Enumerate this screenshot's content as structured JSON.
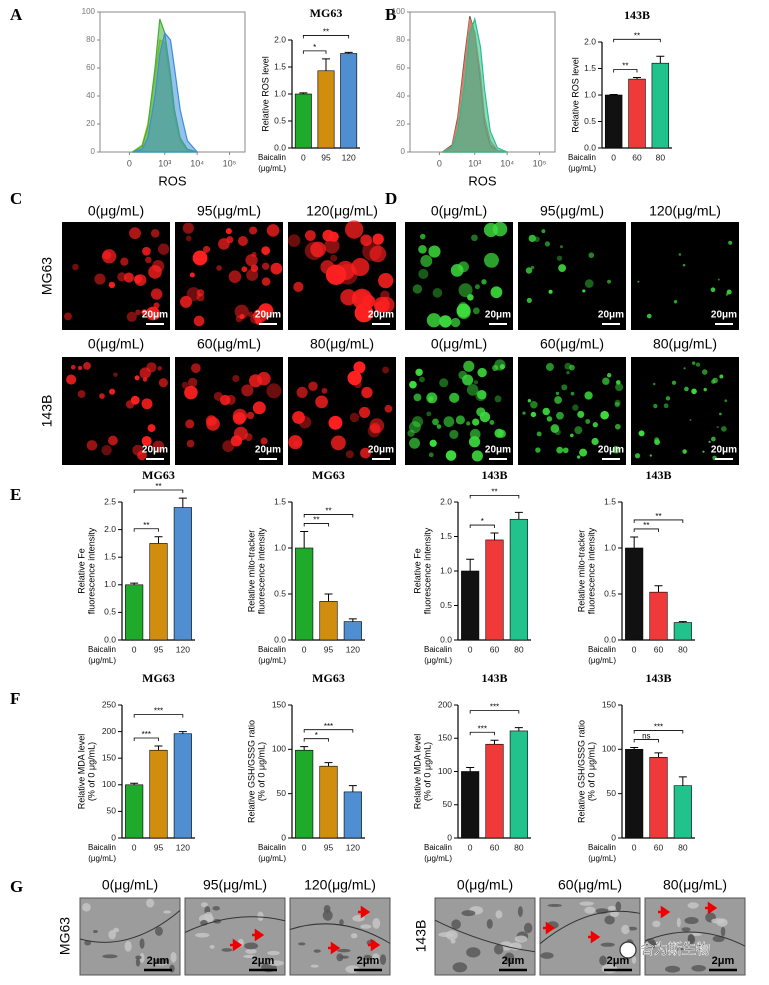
{
  "panel_labels": [
    "A",
    "B",
    "C",
    "D",
    "E",
    "F",
    "G"
  ],
  "chart_data": [
    {
      "type": "area",
      "xscale": "biexponential",
      "xlabel": "ROS",
      "x": [
        100,
        200,
        300,
        500,
        700,
        1000,
        1500,
        2000,
        3000,
        5000,
        10000
      ],
      "series": [
        {
          "color": "#b5c214",
          "values": [
            0,
            5,
            20,
            55,
            80,
            78,
            50,
            25,
            8,
            1,
            0
          ]
        },
        {
          "color": "#3fae3a",
          "values": [
            0,
            4,
            18,
            60,
            95,
            85,
            55,
            30,
            10,
            2,
            0
          ]
        },
        {
          "color": "#3c8fd8",
          "values": [
            0,
            2,
            10,
            40,
            70,
            85,
            80,
            60,
            30,
            8,
            0
          ]
        }
      ],
      "xlim": [
        -1000,
        300000
      ],
      "xticks": [
        {
          "value": 0,
          "label": "0"
        },
        {
          "value": 1000,
          "label": "10³"
        },
        {
          "value": 10000,
          "label": "10⁴"
        },
        {
          "value": 100000,
          "label": "10⁵"
        }
      ],
      "ylim": [
        0,
        100
      ],
      "yticks": [
        0,
        20,
        40,
        60,
        80,
        100
      ]
    },
    {
      "type": "bar",
      "title": "MG63",
      "ylabel": [
        "Relative ROS level"
      ],
      "xgroup_label": [
        "Baicalin",
        "(μg/mL)"
      ],
      "categories": [
        "0",
        "95",
        "120"
      ],
      "values": [
        1.0,
        1.43,
        1.75
      ],
      "errors": [
        0.02,
        0.22,
        0.02
      ],
      "colors": [
        "#1faa2c",
        "#d08d0e",
        "#4f8fd1"
      ],
      "ylim": [
        0,
        2
      ],
      "yticks": [
        {
          "value": 0,
          "label": "0.0"
        },
        0.5,
        {
          "value": 1,
          "label": "1.0"
        },
        1.5,
        {
          "value": 2,
          "label": "2.0"
        }
      ],
      "significance": [
        {
          "groups": [
            0,
            1
          ],
          "label": "*"
        },
        {
          "groups": [
            0,
            2
          ],
          "label": "**"
        }
      ]
    },
    {
      "type": "area",
      "xscale": "biexponential",
      "xlabel": "ROS",
      "x": [
        100,
        200,
        300,
        500,
        700,
        1000,
        1500,
        2000,
        3000,
        5000,
        10000
      ],
      "series": [
        {
          "color": "#6b5a4a",
          "values": [
            0,
            5,
            25,
            70,
            97,
            85,
            50,
            20,
            5,
            1,
            0
          ]
        },
        {
          "color": "#e8735e",
          "values": [
            0,
            4,
            22,
            65,
            95,
            85,
            55,
            25,
            8,
            1,
            0
          ]
        },
        {
          "color": "#25c08c",
          "values": [
            0,
            3,
            15,
            50,
            85,
            95,
            75,
            45,
            15,
            3,
            0
          ]
        }
      ],
      "xlim": [
        -1000,
        300000
      ],
      "xticks": [
        {
          "value": 0,
          "label": "0"
        },
        {
          "value": 1000,
          "label": "10³"
        },
        {
          "value": 10000,
          "label": "10⁴"
        },
        {
          "value": 100000,
          "label": "10⁵"
        }
      ],
      "ylim": [
        0,
        100
      ],
      "yticks": [
        0,
        20,
        40,
        60,
        80,
        100
      ]
    },
    {
      "type": "bar",
      "title": "143B",
      "ylabel": [
        "Relative ROS level"
      ],
      "xgroup_label": [
        "Baicalin",
        "(μg/mL)"
      ],
      "categories": [
        "0",
        "60",
        "80"
      ],
      "values": [
        1.0,
        1.3,
        1.6
      ],
      "errors": [
        0.01,
        0.03,
        0.13
      ],
      "colors": [
        "#111111",
        "#f03a3a",
        "#22c28c"
      ],
      "ylim": [
        0,
        2
      ],
      "yticks": [
        {
          "value": 0,
          "label": "0.0"
        },
        0.5,
        {
          "value": 1,
          "label": "1.0"
        },
        1.5,
        {
          "value": 2,
          "label": "2.0"
        }
      ],
      "significance": [
        {
          "groups": [
            0,
            1
          ],
          "label": "**"
        },
        {
          "groups": [
            0,
            2
          ],
          "label": "**"
        }
      ]
    },
    {
      "type": "bar",
      "title": "MG63",
      "ylabel": [
        "Relative Fe",
        "fluorescence intensity"
      ],
      "xgroup_label": [
        "Baicalin",
        "(μg/mL)"
      ],
      "categories": [
        "0",
        "95",
        "120"
      ],
      "values": [
        1.0,
        1.75,
        2.4
      ],
      "errors": [
        0.03,
        0.12,
        0.17
      ],
      "colors": [
        "#1faa2c",
        "#d08d0e",
        "#4f8fd1"
      ],
      "ylim": [
        0,
        2.5
      ],
      "yticks": [
        {
          "value": 0,
          "label": "0.0"
        },
        0.5,
        {
          "value": 1,
          "label": "1.0"
        },
        1.5,
        {
          "value": 2,
          "label": "2.0"
        },
        2.5
      ],
      "significance": [
        {
          "groups": [
            0,
            1
          ],
          "label": "**"
        },
        {
          "groups": [
            0,
            2
          ],
          "label": "**"
        }
      ]
    },
    {
      "type": "bar",
      "title": "MG63",
      "ylabel": [
        "Relative mito-tracker",
        "fluorescence intensity"
      ],
      "xgroup_label": [
        "Baicalin",
        "(μg/mL)"
      ],
      "categories": [
        "0",
        "95",
        "120"
      ],
      "values": [
        1.0,
        0.42,
        0.2
      ],
      "errors": [
        0.18,
        0.08,
        0.03
      ],
      "colors": [
        "#1faa2c",
        "#d08d0e",
        "#4f8fd1"
      ],
      "ylim": [
        0,
        1.5
      ],
      "yticks": [
        {
          "value": 0,
          "label": "0.0"
        },
        0.5,
        {
          "value": 1,
          "label": "1.0"
        },
        1.5
      ],
      "significance": [
        {
          "groups": [
            0,
            1
          ],
          "label": "**"
        },
        {
          "groups": [
            0,
            2
          ],
          "label": "**"
        }
      ]
    },
    {
      "type": "bar",
      "title": "143B",
      "ylabel": [
        "Relative Fe",
        "fluorescence intensity"
      ],
      "xgroup_label": [
        "Baicalin",
        "(μg/mL)"
      ],
      "categories": [
        "0",
        "60",
        "80"
      ],
      "values": [
        1.0,
        1.45,
        1.75
      ],
      "errors": [
        0.17,
        0.1,
        0.1
      ],
      "colors": [
        "#111111",
        "#f03a3a",
        "#22c28c"
      ],
      "ylim": [
        0,
        2
      ],
      "yticks": [
        {
          "value": 0,
          "label": "0.0"
        },
        0.5,
        {
          "value": 1,
          "label": "1.0"
        },
        1.5,
        {
          "value": 2,
          "label": "2.0"
        }
      ],
      "significance": [
        {
          "groups": [
            0,
            1
          ],
          "label": "*"
        },
        {
          "groups": [
            0,
            2
          ],
          "label": "**"
        }
      ]
    },
    {
      "type": "bar",
      "title": "143B",
      "ylabel": [
        "Relative mito-tracker",
        "fluorescence intensity"
      ],
      "xgroup_label": [
        "Baicalin",
        "(μg/mL)"
      ],
      "categories": [
        "0",
        "60",
        "80"
      ],
      "values": [
        1.0,
        0.52,
        0.19
      ],
      "errors": [
        0.12,
        0.07,
        0.01
      ],
      "colors": [
        "#111111",
        "#f03a3a",
        "#22c28c"
      ],
      "ylim": [
        0,
        1.5
      ],
      "yticks": [
        {
          "value": 0,
          "label": "0.0"
        },
        0.5,
        {
          "value": 1,
          "label": "1.0"
        },
        1.5
      ],
      "significance": [
        {
          "groups": [
            0,
            1
          ],
          "label": "**"
        },
        {
          "groups": [
            0,
            2
          ],
          "label": "**"
        }
      ]
    },
    {
      "type": "bar",
      "title": "MG63",
      "ylabel": [
        "Relative MDA level",
        "(% of 0 μg/mL)"
      ],
      "xgroup_label": [
        "Baicalin",
        "(μg/mL)"
      ],
      "categories": [
        "0",
        "95",
        "120"
      ],
      "values": [
        100,
        165,
        196
      ],
      "errors": [
        3,
        8,
        4
      ],
      "colors": [
        "#1faa2c",
        "#d08d0e",
        "#4f8fd1"
      ],
      "ylim": [
        0,
        250
      ],
      "yticks": [
        0,
        50,
        100,
        150,
        200,
        250
      ],
      "significance": [
        {
          "groups": [
            0,
            1
          ],
          "label": "***"
        },
        {
          "groups": [
            0,
            2
          ],
          "label": "***"
        }
      ]
    },
    {
      "type": "bar",
      "title": "MG63",
      "ylabel": [
        "Relative GSH/GSSG ratio",
        "(% of 0 μg/mL)"
      ],
      "xgroup_label": [
        "Baicalin",
        "(μg/mL)"
      ],
      "categories": [
        "0",
        "95",
        "120"
      ],
      "values": [
        99,
        81,
        52
      ],
      "errors": [
        4,
        4,
        7
      ],
      "colors": [
        "#1faa2c",
        "#d08d0e",
        "#4f8fd1"
      ],
      "ylim": [
        0,
        150
      ],
      "yticks": [
        0,
        50,
        100,
        150
      ],
      "significance": [
        {
          "groups": [
            0,
            1
          ],
          "label": "*"
        },
        {
          "groups": [
            0,
            2
          ],
          "label": "***"
        }
      ]
    },
    {
      "type": "bar",
      "title": "143B",
      "ylabel": [
        "Relative MDA level",
        "(% of 0 μg/mL)"
      ],
      "xgroup_label": [
        "Baicalin",
        "(μg/mL)"
      ],
      "categories": [
        "0",
        "60",
        "80"
      ],
      "values": [
        100,
        141,
        161
      ],
      "errors": [
        6,
        6,
        5
      ],
      "colors": [
        "#111111",
        "#f03a3a",
        "#22c28c"
      ],
      "ylim": [
        0,
        200
      ],
      "yticks": [
        0,
        50,
        100,
        150,
        200
      ],
      "significance": [
        {
          "groups": [
            0,
            1
          ],
          "label": "***"
        },
        {
          "groups": [
            0,
            2
          ],
          "label": "***"
        }
      ]
    },
    {
      "type": "bar",
      "title": "143B",
      "ylabel": [
        "Relative GSH/GSSG ratio",
        "(% of 0 μg/mL)"
      ],
      "xgroup_label": [
        "Baicalin",
        "(μg/mL)"
      ],
      "categories": [
        "0",
        "60",
        "80"
      ],
      "values": [
        100,
        91,
        59
      ],
      "errors": [
        2,
        5,
        10
      ],
      "colors": [
        "#111111",
        "#f03a3a",
        "#22c28c"
      ],
      "ylim": [
        0,
        150
      ],
      "yticks": [
        0,
        50,
        100,
        150
      ],
      "significance": [
        {
          "groups": [
            0,
            1
          ],
          "label": "ns"
        },
        {
          "groups": [
            0,
            2
          ],
          "label": "***"
        }
      ]
    }
  ],
  "micrographs": {
    "C": {
      "rows": [
        {
          "label": "MG63",
          "columns": [
            "0(μg/mL)",
            "95(μg/mL)",
            "120(μg/mL)"
          ]
        },
        {
          "label": "143B",
          "columns": [
            "0(μg/mL)",
            "60(μg/mL)",
            "80(μg/mL)"
          ]
        }
      ],
      "scale": "20μm"
    },
    "D": {
      "rows": [
        {
          "columns": [
            "0(μg/mL)",
            "95(μg/mL)",
            "120(μg/mL)"
          ]
        },
        {
          "columns": [
            "0(μg/mL)",
            "60(μg/mL)",
            "80(μg/mL)"
          ]
        }
      ],
      "scale": "20μm"
    },
    "G": {
      "rows": [
        {
          "label": "MG63",
          "columns": [
            "0(μg/mL)",
            "95(μg/mL)",
            "120(μg/mL)"
          ]
        },
        {
          "label": "143B",
          "columns": [
            "0(μg/mL)",
            "60(μg/mL)",
            "80(μg/mL)"
          ]
        }
      ],
      "scale": "2μm"
    }
  },
  "watermark": "舍为斯生物"
}
